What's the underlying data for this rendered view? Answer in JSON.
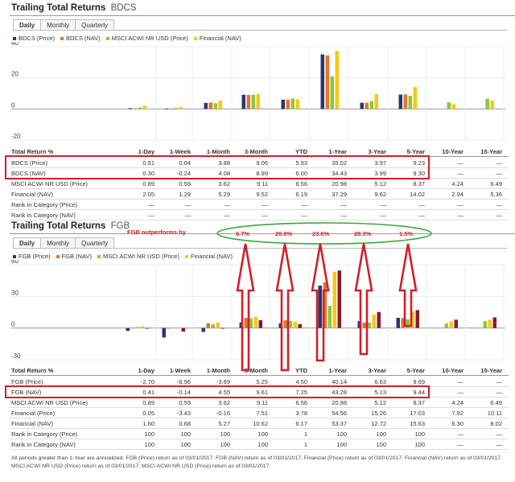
{
  "colors": {
    "price": "#2a3570",
    "nav": "#e8732a",
    "msci": "#8cc63f",
    "financial_nav": "#f7c916",
    "financial_price": "#8b1a2b",
    "highlight": "#d0202a",
    "ellipse": "#3aa93a"
  },
  "sections": [
    {
      "title": "Trailing Total Returns",
      "ticker": "BDCS",
      "tabs": [
        "Daily",
        "Monthly",
        "Quarterly"
      ],
      "active_tab": "Daily",
      "legend": [
        "BDCS (Price)",
        "BDCS (NAV)",
        "MSCI ACWI NR USD (Price)",
        "Financial (NAV)"
      ],
      "header_label": "Total Return %",
      "columns": [
        "1-Day",
        "1-Week",
        "1-Month",
        "3-Month",
        "YTD",
        "1-Year",
        "3-Year",
        "5-Year",
        "10-Year",
        "15-Year"
      ],
      "rows": [
        {
          "label": "BDCS (Price)",
          "values": [
            "0.51",
            "0.04",
            "3.88",
            "9.06",
            "5.93",
            "35.02",
            "3.97",
            "9.23",
            "—",
            "—"
          ]
        },
        {
          "label": "BDCS (NAV)",
          "values": [
            "0.30",
            "-0.24",
            "4.08",
            "8.99",
            "6.00",
            "34.43",
            "3.99",
            "9.30",
            "—",
            "—"
          ]
        },
        {
          "label": "MSCI ACWI NR USD (Price)",
          "values": [
            "0.89",
            "0.59",
            "3.62",
            "9.11",
            "6.56",
            "20.98",
            "5.12",
            "8.37",
            "4.24",
            "6.49"
          ]
        },
        {
          "label": "Financial (NAV)",
          "values": [
            "2.05",
            "1.29",
            "5.29",
            "9.52",
            "6.19",
            "37.29",
            "9.62",
            "14.02",
            "2.94",
            "5.36"
          ]
        },
        {
          "label": "Rank in Category (Price)",
          "values": [
            "—",
            "—",
            "—",
            "—",
            "—",
            "—",
            "—",
            "—",
            "—",
            "—"
          ]
        },
        {
          "label": "Rank in Category (NAV)",
          "values": [
            "—",
            "—",
            "—",
            "—",
            "—",
            "—",
            "—",
            "—",
            "—",
            "—"
          ]
        }
      ]
    },
    {
      "title": "Trailing Total Returns",
      "ticker": "FGB",
      "tabs": [
        "Daily",
        "Monthly",
        "Quarterly"
      ],
      "active_tab": "Daily",
      "legend": [
        "FGB (Price)",
        "FGB (NAV)",
        "MSCI ACWI NR USD (Price)",
        "Financial (NAV)"
      ],
      "header_label": "Total Return %",
      "columns": [
        "1-Day",
        "1-Week",
        "1-Month",
        "3-Month",
        "YTD",
        "1-Year",
        "3-Year",
        "5-Year",
        "10-Year",
        "15-Year"
      ],
      "rows": [
        {
          "label": "FGB (Price)",
          "values": [
            "-2.70",
            "-8.96",
            "-3.69",
            "5.25",
            "4.50",
            "40.14",
            "6.63",
            "9.69",
            "—",
            "—"
          ]
        },
        {
          "label": "FGB (NAV)",
          "values": [
            "0.41",
            "-0.14",
            "4.55",
            "9.61",
            "7.25",
            "43.28",
            "5.13",
            "9.44",
            "—",
            "—"
          ]
        },
        {
          "label": "MSCI ACWI NR USD (Price)",
          "values": [
            "0.89",
            "0.59",
            "3.62",
            "9.11",
            "6.56",
            "20.98",
            "5.12",
            "8.37",
            "4.24",
            "6.49"
          ]
        },
        {
          "label": "Financial (Price)",
          "values": [
            "0.05",
            "-3.43",
            "-0.16",
            "7.51",
            "3.78",
            "54.56",
            "15.26",
            "17.03",
            "7.92",
            "10.11"
          ]
        },
        {
          "label": "Financial (NAV)",
          "values": [
            "1.60",
            "0.68",
            "5.27",
            "10.62",
            "6.17",
            "53.37",
            "12.72",
            "15.63",
            "6.30",
            "8.02"
          ]
        },
        {
          "label": "Rank in Category (Price)",
          "values": [
            "100",
            "100",
            "100",
            "100",
            "1",
            "100",
            "100",
            "100",
            "—",
            "—"
          ]
        },
        {
          "label": "Rank in Category (NAV)",
          "values": [
            "100",
            "100",
            "100",
            "100",
            "1",
            "100",
            "100",
            "100",
            "—",
            "—"
          ]
        }
      ]
    }
  ],
  "annotation": {
    "headline": "FGB outperforms by",
    "values": [
      "6.7%",
      "20.8%",
      "23.6%",
      "28.3%",
      "1.5%"
    ]
  },
  "footnote": "All periods greater than 1-Year are annualized. FGB (Price) return as of 03/01/2017. FGB (NAV) return as of 03/01/2017. Financial (Price) return as of 03/01/2017. Financial (NAV) return as of 03/01/2017. MSCI ACWI NR USD (Price) return as of 03/01/2017. MSCI ACWI NR USD (Price) return as of 03/01/2017.",
  "chart_data": [
    {
      "type": "bar",
      "categories": [
        "1-Day",
        "1-Week",
        "1-Month",
        "3-Month",
        "YTD",
        "1-Year",
        "3-Year",
        "5-Year",
        "10-Year",
        "15-Year"
      ],
      "ylim": [
        -20,
        40
      ],
      "yticks": [
        40,
        20,
        0,
        -20
      ],
      "series": [
        {
          "name": "BDCS (Price)",
          "values": [
            0.51,
            0.04,
            3.88,
            9.06,
            5.93,
            35.02,
            3.97,
            9.23,
            null,
            null
          ]
        },
        {
          "name": "BDCS (NAV)",
          "values": [
            0.3,
            -0.24,
            4.08,
            8.99,
            6.0,
            34.43,
            3.99,
            9.3,
            null,
            null
          ]
        },
        {
          "name": "MSCI ACWI NR USD (Price)",
          "values": [
            0.89,
            0.59,
            3.62,
            9.11,
            6.56,
            20.98,
            5.12,
            8.37,
            4.24,
            6.49
          ]
        },
        {
          "name": "Financial (NAV)",
          "values": [
            2.05,
            1.29,
            5.29,
            9.52,
            6.19,
            37.29,
            9.62,
            14.02,
            2.94,
            5.36
          ]
        }
      ]
    },
    {
      "type": "bar",
      "categories": [
        "1-Day",
        "1-Week",
        "1-Month",
        "3-Month",
        "YTD",
        "1-Year",
        "3-Year",
        "5-Year",
        "10-Year",
        "15-Year"
      ],
      "ylim": [
        -30,
        60
      ],
      "yticks": [
        60,
        30,
        0,
        -30
      ],
      "series": [
        {
          "name": "FGB (Price)",
          "values": [
            -2.7,
            -8.96,
            -3.69,
            5.25,
            4.5,
            40.14,
            6.63,
            9.69,
            null,
            null
          ]
        },
        {
          "name": "FGB (NAV)",
          "values": [
            0.41,
            -0.14,
            4.55,
            9.61,
            7.25,
            43.28,
            5.13,
            9.44,
            null,
            null
          ]
        },
        {
          "name": "MSCI ACWI NR USD (Price)",
          "values": [
            0.89,
            0.59,
            3.62,
            9.11,
            6.56,
            20.98,
            5.12,
            8.37,
            4.24,
            6.49
          ]
        },
        {
          "name": "Financial (NAV)",
          "values": [
            1.6,
            0.68,
            5.27,
            10.62,
            6.17,
            53.37,
            12.72,
            15.63,
            6.3,
            8.02
          ]
        },
        {
          "name": "Financial (Price)",
          "values": [
            0.05,
            -3.43,
            -0.16,
            7.51,
            3.78,
            54.56,
            15.26,
            17.03,
            7.92,
            10.11
          ]
        }
      ]
    }
  ]
}
